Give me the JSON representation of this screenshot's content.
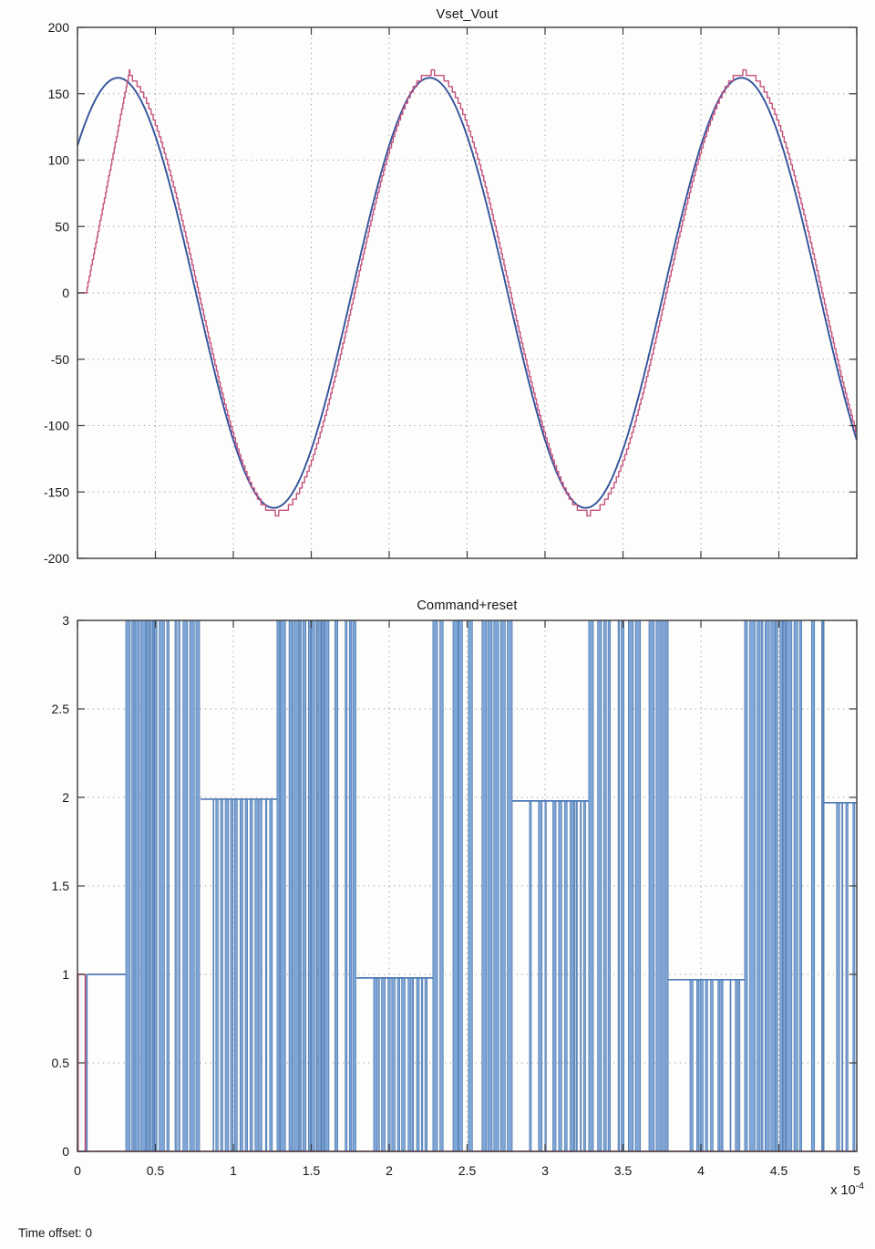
{
  "page": {
    "background": "#fdfdfc",
    "time_offset_label": "Time offset: 0"
  },
  "colors": {
    "axis": "#3a3a3a",
    "grid": "#9a9a9a",
    "tick_text": "#161616",
    "vout_line": "#34539b",
    "vset_line": "#c4517e",
    "command_bar_fill": "#7fa6d6",
    "command_bar_stroke": "#4674b0",
    "command_line": "#4e7ab8",
    "reset_line": "#c43f66"
  },
  "chart_data": [
    {
      "type": "line",
      "title": "Vset_Vout",
      "xlabel": "",
      "ylabel": "",
      "xlim_x1e4": [
        0,
        5
      ],
      "ylim": [
        -200,
        200
      ],
      "y_tick_labels": [
        "200",
        "150",
        "100",
        "50",
        "0",
        "-50",
        "-100",
        "-150",
        "-200"
      ],
      "x_ticks_x1e4": [
        0,
        0.5,
        1,
        1.5,
        2,
        2.5,
        3,
        3.5,
        4,
        4.5,
        5
      ],
      "x_tick_labels_shown": false,
      "grid": "dotted",
      "series": [
        {
          "name": "Vout",
          "shape": "smooth sine",
          "amplitude": 162,
          "period_x1e4": 2,
          "frequency_hz": 5000,
          "phase_rad": 0.754,
          "value_at_t0": 112,
          "peaks_at_x1e4": [
            0.26,
            2.26,
            4.26
          ],
          "minima_at_x1e4": [
            1.26,
            3.26
          ]
        },
        {
          "name": "Vset",
          "shape": "quantized staircase sine",
          "amplitude": 166,
          "period_x1e4": 2,
          "phase_rad": 0.694,
          "quant_step": 4.2,
          "startup_ramp": {
            "flat_zero_until": 0.057,
            "ramp_end": 0.335,
            "ramp_peak_value": 168
          }
        }
      ]
    },
    {
      "type": "step",
      "title": "Command+reset",
      "xlabel": "",
      "ylabel": "",
      "xlim_x1e4": [
        0,
        5
      ],
      "ylim": [
        0,
        3
      ],
      "y_tick_labels": [
        "3",
        "2.5",
        "2",
        "1.5",
        "1",
        "0.5",
        "0"
      ],
      "x_tick_labels": [
        "0",
        "0.5",
        "1",
        "1.5",
        "2",
        "2.5",
        "3",
        "3.5",
        "4",
        "4.5",
        "5"
      ],
      "x_multiplier": {
        "base": "x 10",
        "exp": "-4"
      },
      "grid": "dotted",
      "series": [
        {
          "name": "command_plus_reset",
          "render": "bars_and_levels",
          "seed": 20,
          "segments": [
            {
              "t": [
                0,
                0.06
              ],
              "type": "level",
              "level": 0
            },
            {
              "t": [
                0.06,
                0.31
              ],
              "type": "level",
              "level": 1
            },
            {
              "t": [
                0.31,
                0.79
              ],
              "type": "chatter",
              "lo": 0,
              "hi": 3
            },
            {
              "t": [
                0.79,
                1.28
              ],
              "type": "level",
              "level": 1.99,
              "dips": [
                0.87,
                1.25
              ],
              "dip_to": 0
            },
            {
              "t": [
                1.28,
                1.79
              ],
              "type": "chatter",
              "lo": 0,
              "hi": 3
            },
            {
              "t": [
                1.79,
                2.28
              ],
              "type": "level",
              "level": 0.98,
              "dips": [
                1.9,
                2.26
              ],
              "dip_to": 0
            },
            {
              "t": [
                2.28,
                2.79
              ],
              "type": "chatter",
              "lo": 0,
              "hi": 3
            },
            {
              "t": [
                2.79,
                3.28
              ],
              "type": "level",
              "level": 1.98,
              "dips": [
                2.9,
                3.26
              ],
              "dip_to": 0
            },
            {
              "t": [
                3.28,
                3.79
              ],
              "type": "chatter",
              "lo": 0,
              "hi": 3
            },
            {
              "t": [
                3.79,
                4.28
              ],
              "type": "level",
              "level": 0.97,
              "dips": [
                3.93,
                4.25
              ],
              "dip_to": 0
            },
            {
              "t": [
                4.28,
                4.79
              ],
              "type": "chatter",
              "lo": 0,
              "hi": 3
            },
            {
              "t": [
                4.79,
                5
              ],
              "type": "level",
              "level": 1.97,
              "dips": [
                4.87,
                5
              ],
              "dip_to": 0
            }
          ]
        },
        {
          "name": "reset_pulse",
          "points_t_x1e4": [
            0,
            0.004,
            0.004,
            0.05,
            0.05,
            5
          ],
          "points_v": [
            0,
            0,
            1,
            1,
            0,
            0
          ]
        }
      ]
    }
  ]
}
